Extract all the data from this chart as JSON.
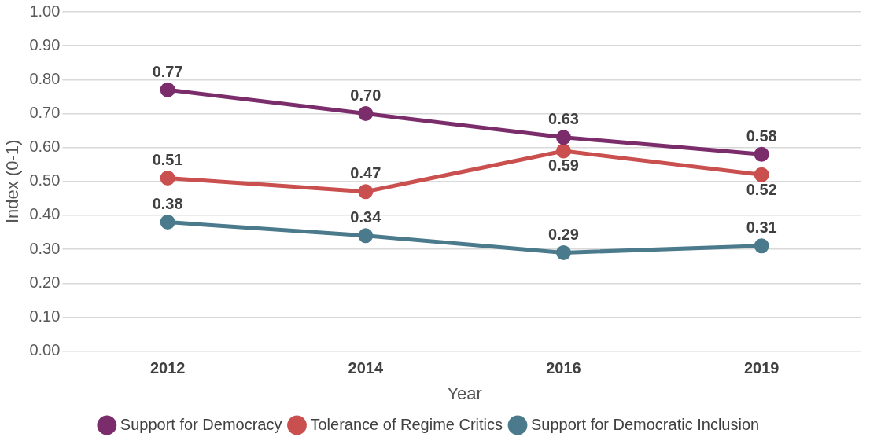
{
  "chart_data": {
    "type": "line",
    "xlabel": "Year",
    "ylabel": "Index (0-1)",
    "categories": [
      "2012",
      "2014",
      "2016",
      "2019"
    ],
    "series": [
      {
        "name": "Support for Democracy",
        "color": "#7b2d6b",
        "values": [
          0.77,
          0.7,
          0.63,
          0.58
        ],
        "value_labels": [
          "0.77",
          "0.70",
          "0.63",
          "0.58"
        ]
      },
      {
        "name": "Tolerance of Regime Critics",
        "color": "#c9504f",
        "values": [
          0.51,
          0.47,
          0.59,
          0.52
        ],
        "value_labels": [
          "0.51",
          "0.47",
          "0.59",
          "0.52"
        ]
      },
      {
        "name": "Support for Democratic Inclusion",
        "color": "#4a7a8c",
        "values": [
          0.38,
          0.34,
          0.29,
          0.31
        ],
        "value_labels": [
          "0.38",
          "0.34",
          "0.29",
          "0.31"
        ]
      }
    ],
    "ylim": [
      0,
      1
    ],
    "yticks": [
      {
        "value": 0,
        "label": "0.00"
      },
      {
        "value": 0.1,
        "label": "0.10"
      },
      {
        "value": 0.2,
        "label": "0.20"
      },
      {
        "value": 0.3,
        "label": "0.30"
      },
      {
        "value": 0.4,
        "label": "0.40"
      },
      {
        "value": 0.5,
        "label": "0.50"
      },
      {
        "value": 0.6,
        "label": "0.60"
      },
      {
        "value": 0.7,
        "label": "0.70"
      },
      {
        "value": 0.8,
        "label": "0.80"
      },
      {
        "value": 0.9,
        "label": "0.90"
      },
      {
        "value": 1,
        "label": "1.00"
      }
    ],
    "grid": "y",
    "legend": "bottom",
    "marker": "circle",
    "line_style": "solid"
  }
}
